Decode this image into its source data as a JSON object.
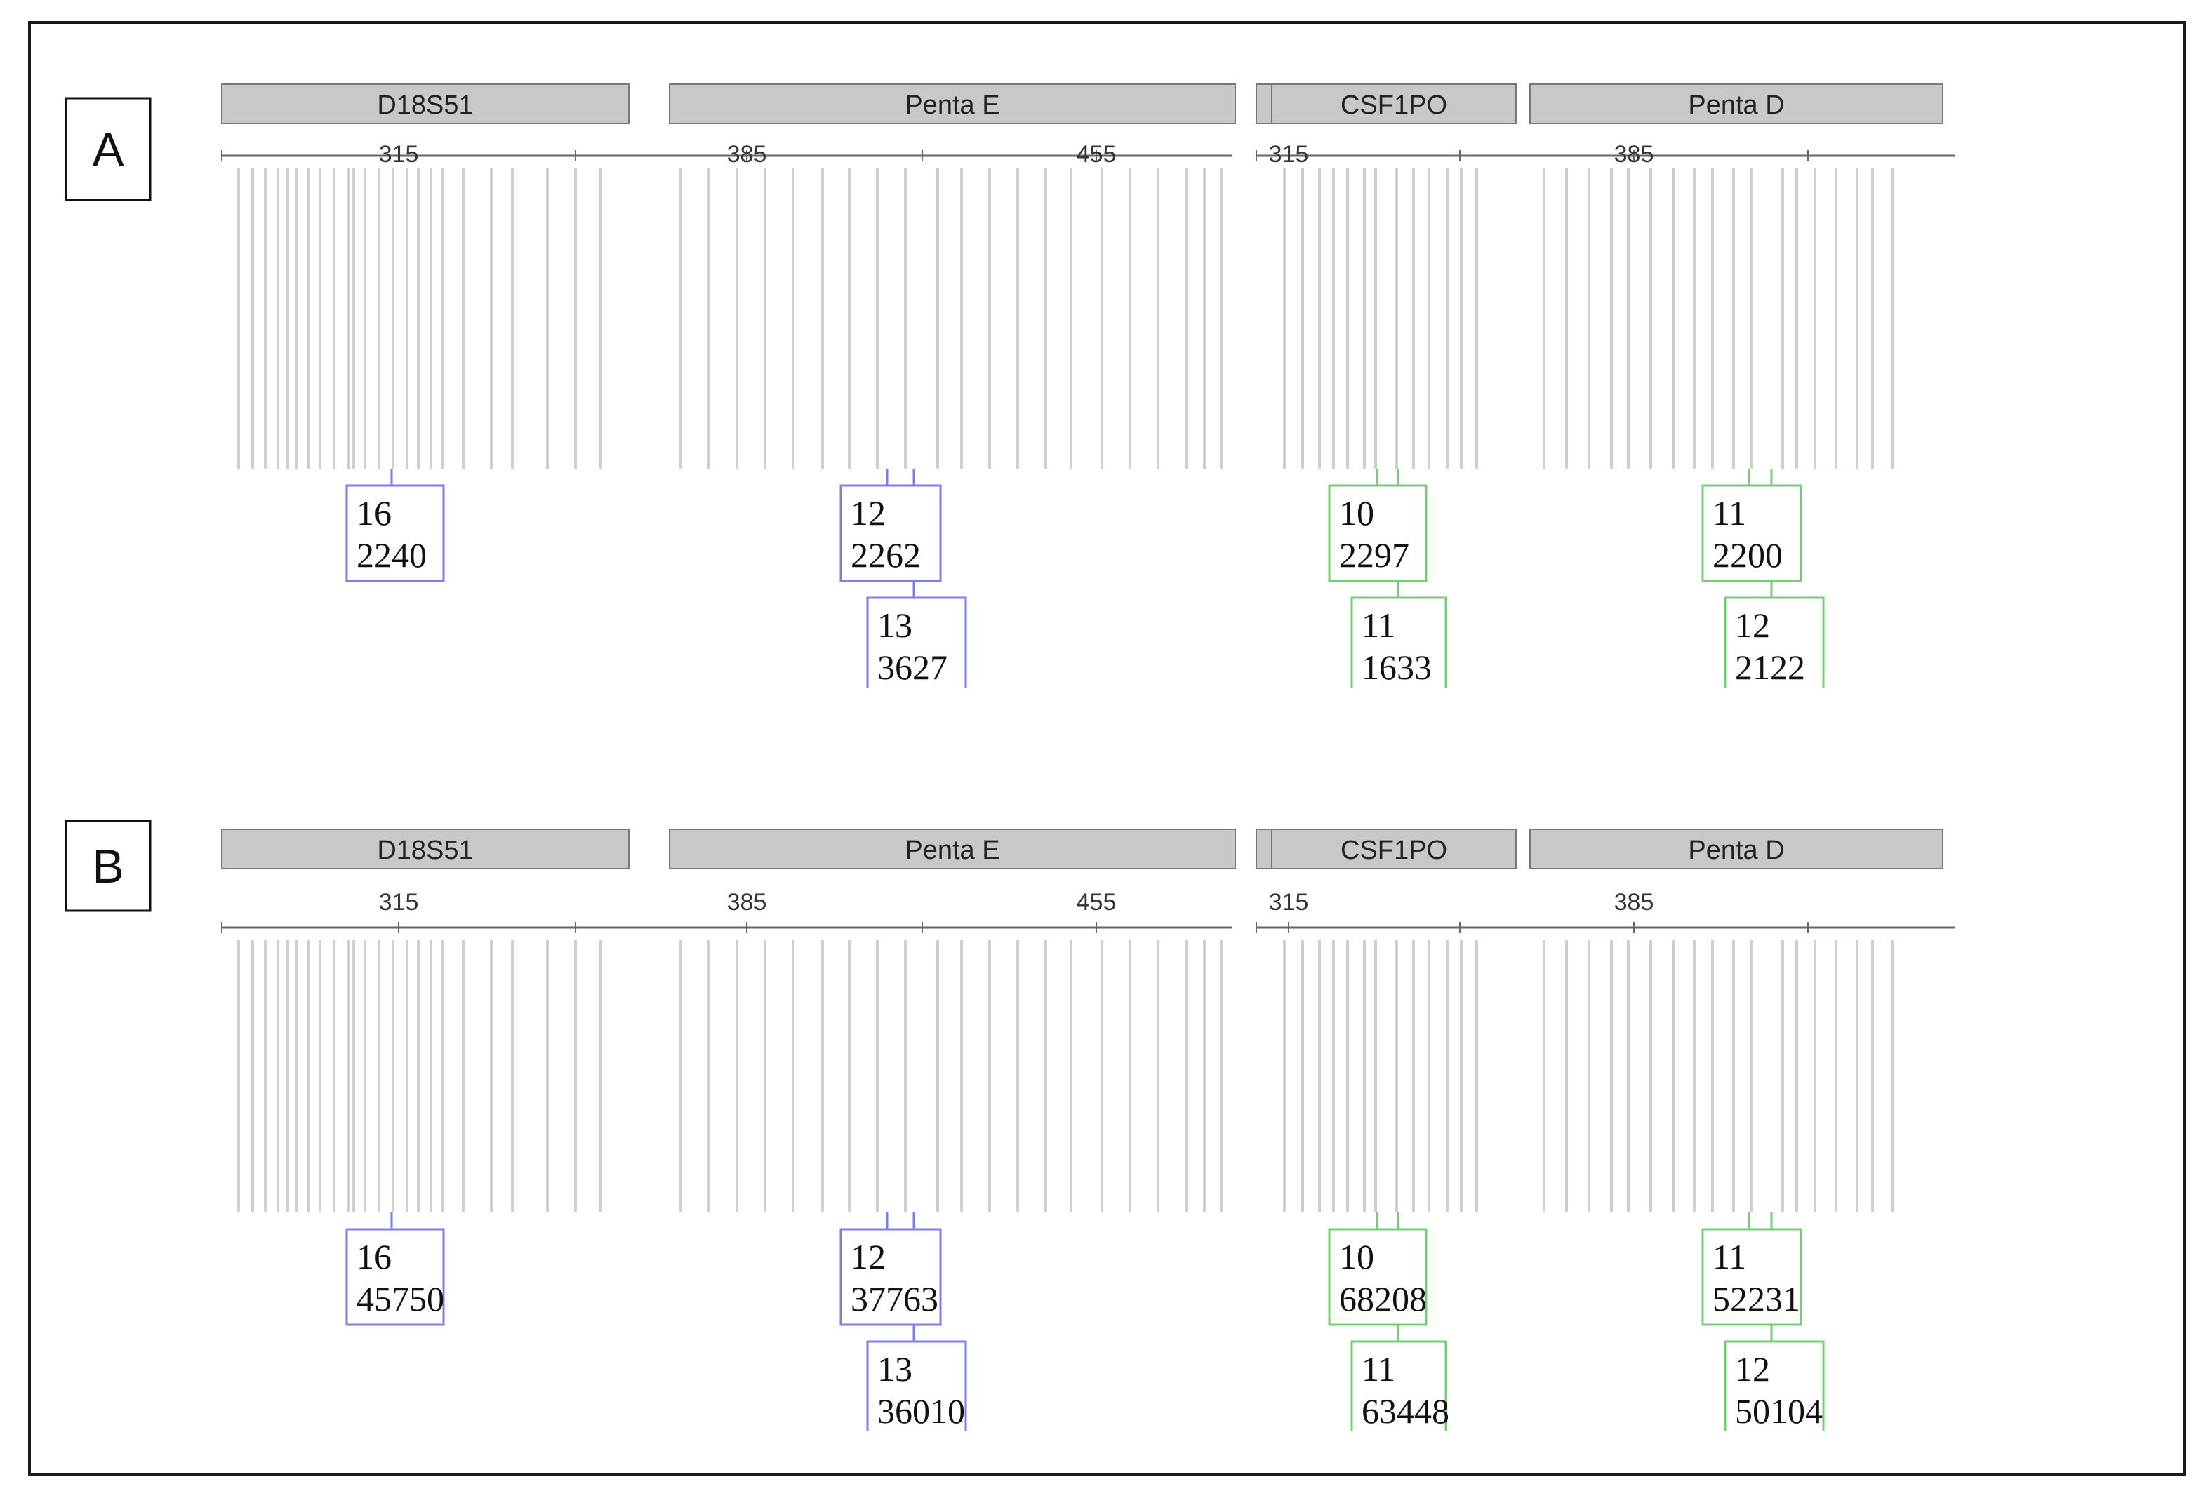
{
  "colors": {
    "blue": "#1a1fc8",
    "green": "#1f9e1f",
    "box_blue": "#7a7cf0",
    "box_green": "#74cc74",
    "header_fill": "#c8c8c8",
    "bin_line": "#cfcfcf"
  },
  "chart_data": [
    {
      "type": "line",
      "panel_label": "A",
      "channels": [
        {
          "color": "blue",
          "markers": [
            {
              "name": "D18S51"
            },
            {
              "name": "Penta E"
            }
          ],
          "x_ticks": [
            315,
            385,
            455
          ],
          "alleles": [
            {
              "allele": "16",
              "height": "2240"
            },
            {
              "allele": "12",
              "height": "2262"
            },
            {
              "allele": "13",
              "height": "3627"
            }
          ]
        },
        {
          "color": "green",
          "markers": [
            {
              "name": "CSF1PO"
            },
            {
              "name": "Penta D"
            }
          ],
          "x_ticks": [
            315,
            385
          ],
          "alleles": [
            {
              "allele": "10",
              "height": "2297"
            },
            {
              "allele": "11",
              "height": "1633"
            },
            {
              "allele": "11",
              "height": "2200"
            },
            {
              "allele": "12",
              "height": "2122"
            }
          ]
        }
      ]
    },
    {
      "type": "line",
      "panel_label": "B",
      "channels": [
        {
          "color": "blue",
          "markers": [
            {
              "name": "D18S51"
            },
            {
              "name": "Penta E"
            }
          ],
          "x_ticks": [
            315,
            385,
            455
          ],
          "alleles": [
            {
              "allele": "16",
              "height": "45750"
            },
            {
              "allele": "12",
              "height": "37763"
            },
            {
              "allele": "13",
              "height": "36010"
            }
          ]
        },
        {
          "color": "green",
          "markers": [
            {
              "name": "CSF1PO"
            },
            {
              "name": "Penta D"
            }
          ],
          "x_ticks": [
            315,
            385
          ],
          "alleles": [
            {
              "allele": "10",
              "height": "68208"
            },
            {
              "allele": "11",
              "height": "63448"
            },
            {
              "allele": "11",
              "height": "52231"
            },
            {
              "allele": "12",
              "height": "50104"
            }
          ]
        }
      ]
    }
  ]
}
